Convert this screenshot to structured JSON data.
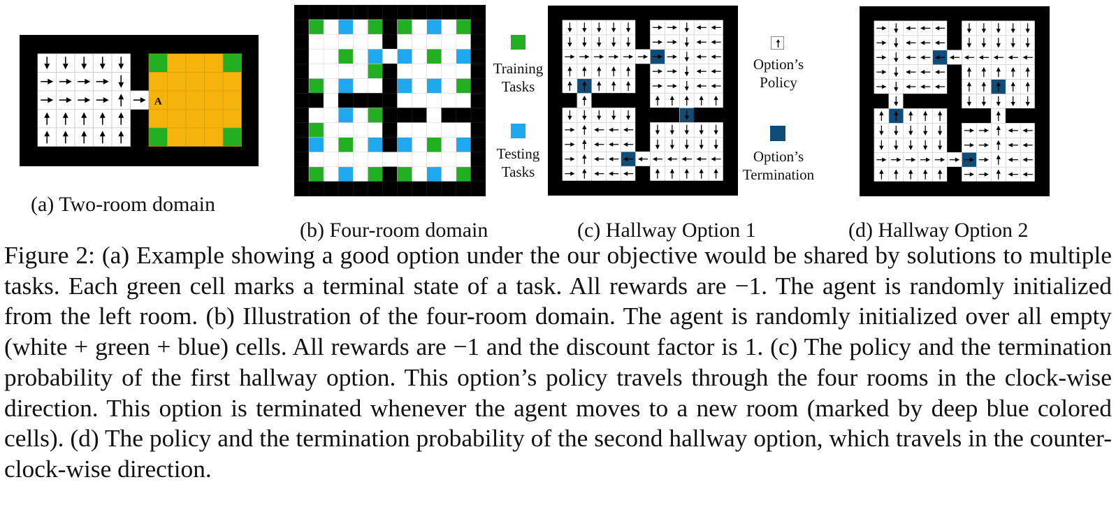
{
  "colors": {
    "wall": "#000000",
    "cell": "#ffffff",
    "grid_line": "#c8c8c8",
    "training_task": "#22b022",
    "testing_task": "#20a8ee",
    "termination": "#0e4d77",
    "orange_room": "#f5b30c"
  },
  "panel_a": {
    "agent_label": "A",
    "caption": "(a) Two-room domain"
  },
  "panel_b": {
    "caption": "(b) Four-room domain"
  },
  "panel_c": {
    "caption": "(c) Hallway Option 1"
  },
  "panel_d": {
    "caption": "(d) Hallway Option 2"
  },
  "legend_b": {
    "training": "Training\nTasks",
    "testing": "Testing\nTasks"
  },
  "legend_c": {
    "policy": "Option’s\nPolicy",
    "termination": "Option’s\nTermination"
  },
  "caption_text": "Figure 2: (a) Example showing a good option under the our objective would be shared by solutions to multiple tasks. Each green cell marks a terminal state of a task. All rewards are −1. The agent is randomly initialized from the left room. (b) Illustration of the four-room domain. The agent is randomly initialized over all empty (white + green + blue) cells. All rewards are −1 and the discount factor is 1. (c) The policy and the termination probability of the first hallway option. This option’s policy travels through the four rooms in the clock-wise direction. This option is terminated whenever the agent moves to a new room (marked by deep blue colored cells). (d) The policy and the termination probability of the second hallway option, which travels in the counter-clock-wise direction."
}
